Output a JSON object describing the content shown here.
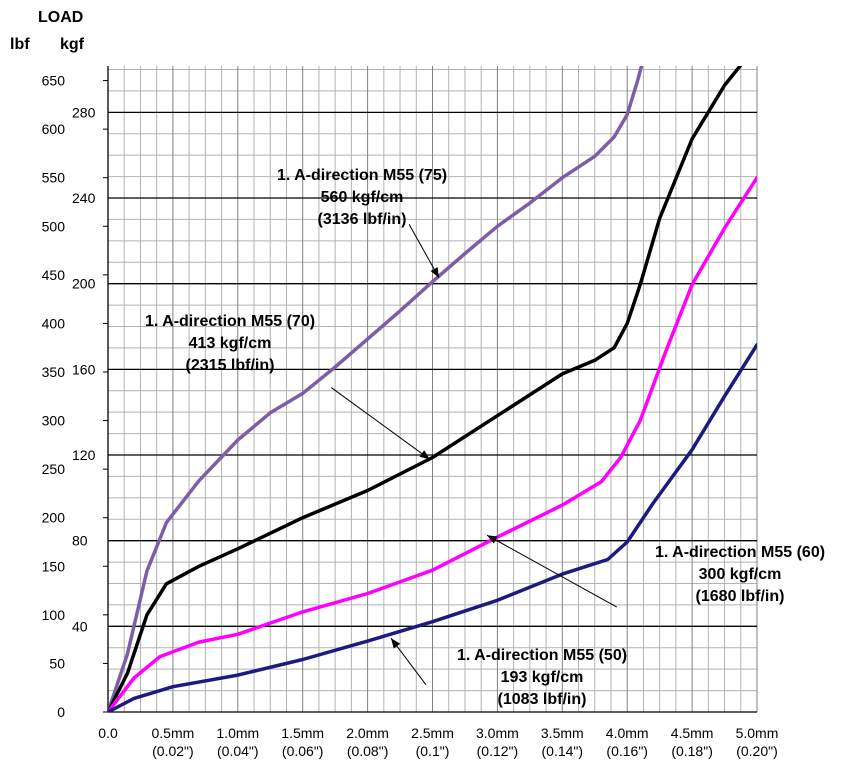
{
  "chart_data": {
    "type": "line",
    "y_title": "LOAD",
    "y_unit_lbf": "lbf",
    "y_unit_kgf": "kgf",
    "x_range_mm": [
      0,
      5
    ],
    "y_range_lbf": [
      0,
      665
    ],
    "grid": true,
    "x_ticks": [
      {
        "value": 0.0,
        "mm": "0.0",
        "in": ""
      },
      {
        "value": 0.5,
        "mm": "0.5mm",
        "in": "(0.02\")"
      },
      {
        "value": 1.0,
        "mm": "1.0mm",
        "in": "(0.04\")"
      },
      {
        "value": 1.5,
        "mm": "1.5mm",
        "in": "(0.06\")"
      },
      {
        "value": 2.0,
        "mm": "2.0mm",
        "in": "(0.08\")"
      },
      {
        "value": 2.5,
        "mm": "2.5mm",
        "in": "(0.1\")"
      },
      {
        "value": 3.0,
        "mm": "3.0mm",
        "in": "(0.12\")"
      },
      {
        "value": 3.5,
        "mm": "3.5mm",
        "in": "(0.14\")"
      },
      {
        "value": 4.0,
        "mm": "4.0mm",
        "in": "(0.16\")"
      },
      {
        "value": 4.5,
        "mm": "4.5mm",
        "in": "(0.18\")"
      },
      {
        "value": 5.0,
        "mm": "5.0mm",
        "in": "(0.20\")"
      }
    ],
    "y_ticks_lbf": [
      0,
      50,
      100,
      150,
      200,
      250,
      300,
      350,
      400,
      450,
      500,
      550,
      600,
      650
    ],
    "y_ticks_kgf": [
      40,
      80,
      120,
      160,
      200,
      240,
      280
    ],
    "series": [
      {
        "label_lines": [
          "1. A-direction M55 (75)",
          "560 kgf/cm",
          "(3136 lbf/in)"
        ],
        "color": "#7b5ea7",
        "points": [
          [
            0,
            0
          ],
          [
            0.15,
            60
          ],
          [
            0.3,
            145
          ],
          [
            0.45,
            195
          ],
          [
            0.7,
            238
          ],
          [
            1.0,
            280
          ],
          [
            1.25,
            308
          ],
          [
            1.5,
            328
          ],
          [
            1.75,
            355
          ],
          [
            2.0,
            384
          ],
          [
            2.25,
            413
          ],
          [
            2.5,
            443
          ],
          [
            2.75,
            472
          ],
          [
            3.0,
            500
          ],
          [
            3.25,
            524
          ],
          [
            3.5,
            550
          ],
          [
            3.75,
            572
          ],
          [
            3.9,
            592
          ],
          [
            4.0,
            615
          ],
          [
            4.08,
            650
          ],
          [
            4.12,
            670
          ]
        ]
      },
      {
        "label_lines": [
          "1. A-direction M55 (70)",
          "413 kgf/cm",
          "(2315 lbf/in)"
        ],
        "color": "#000000",
        "points": [
          [
            0,
            0
          ],
          [
            0.15,
            40
          ],
          [
            0.3,
            100
          ],
          [
            0.45,
            132
          ],
          [
            0.7,
            150
          ],
          [
            1.0,
            168
          ],
          [
            1.5,
            200
          ],
          [
            2.0,
            228
          ],
          [
            2.5,
            262
          ],
          [
            3.0,
            305
          ],
          [
            3.5,
            348
          ],
          [
            3.75,
            362
          ],
          [
            3.9,
            375
          ],
          [
            4.0,
            400
          ],
          [
            4.1,
            440
          ],
          [
            4.25,
            508
          ],
          [
            4.5,
            590
          ],
          [
            4.75,
            645
          ],
          [
            4.9,
            670
          ]
        ]
      },
      {
        "label_lines": [
          "1. A-direction M55 (60)",
          "300 kgf/cm",
          "(1680 lbf/in)"
        ],
        "color": "#ff00ff",
        "points": [
          [
            0,
            0
          ],
          [
            0.2,
            35
          ],
          [
            0.4,
            57
          ],
          [
            0.7,
            72
          ],
          [
            1.0,
            80
          ],
          [
            1.5,
            103
          ],
          [
            2.0,
            122
          ],
          [
            2.5,
            146
          ],
          [
            3.0,
            180
          ],
          [
            3.5,
            213
          ],
          [
            3.8,
            237
          ],
          [
            3.95,
            262
          ],
          [
            4.1,
            300
          ],
          [
            4.3,
            372
          ],
          [
            4.5,
            440
          ],
          [
            4.75,
            498
          ],
          [
            5.0,
            550
          ]
        ]
      },
      {
        "label_lines": [
          "1. A-direction M55 (50)",
          "193 kgf/cm",
          "(1083 lbf/in)"
        ],
        "color": "#1c1a80",
        "points": [
          [
            0,
            0
          ],
          [
            0.2,
            14
          ],
          [
            0.5,
            26
          ],
          [
            1.0,
            38
          ],
          [
            1.5,
            54
          ],
          [
            2.0,
            73
          ],
          [
            2.5,
            93
          ],
          [
            3.0,
            115
          ],
          [
            3.5,
            142
          ],
          [
            3.85,
            157
          ],
          [
            4.0,
            175
          ],
          [
            4.2,
            215
          ],
          [
            4.5,
            270
          ],
          [
            4.75,
            325
          ],
          [
            5.0,
            378
          ]
        ]
      }
    ],
    "annotations": [
      {
        "lines": [
          "1. A-direction M55 (75)",
          "560 kgf/cm",
          "(3136 lbf/in)"
        ],
        "anchor_x": 2.28,
        "anchor_y": 492,
        "text_x": 1.63,
        "text_y": 558,
        "arrow_to": [
          2.55,
          447
        ],
        "arrow_from": [
          2.32,
          502
        ]
      },
      {
        "lines": [
          "1. A-direction M55 (70)",
          "413 kgf/cm",
          "(2315 lbf/in)"
        ],
        "anchor_x": 0.45,
        "anchor_y": 390,
        "text_x": 0.45,
        "text_y": 405,
        "arrow_to": [
          2.48,
          260
        ],
        "arrow_from": [
          1.72,
          334
        ]
      },
      {
        "lines": [
          "1. A-direction M55 (60)",
          "300 kgf/cm",
          "(1680 lbf/in)"
        ],
        "anchor_x": 4.0,
        "anchor_y": 165,
        "text_x": 4.0,
        "text_y": 165,
        "arrow_to": [
          2.92,
          182
        ],
        "arrow_from": [
          3.92,
          108
        ]
      },
      {
        "lines": [
          "1. A-direction M55 (50)",
          "193 kgf/cm",
          "(1083 lbf/in)"
        ],
        "anchor_x": 2.5,
        "anchor_y": 56,
        "text_x": 2.5,
        "text_y": 56,
        "arrow_to": [
          2.18,
          76
        ],
        "arrow_from": [
          2.45,
          28
        ]
      }
    ]
  }
}
